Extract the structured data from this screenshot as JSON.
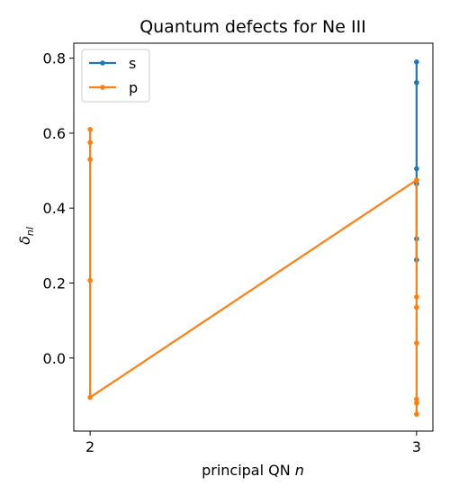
{
  "chart_data": {
    "type": "line",
    "title": "Quantum defects for Ne III",
    "xlabel_text": "principal QN ",
    "xlabel_var": "n",
    "ylabel_sym": "δ",
    "ylabel_sub": "nl",
    "xticks": [
      2,
      3
    ],
    "xtick_labels": [
      "2",
      "3"
    ],
    "yticks": [
      0.0,
      0.2,
      0.4,
      0.6,
      0.8
    ],
    "ytick_labels": [
      "0.0",
      "0.2",
      "0.4",
      "0.6",
      "0.8"
    ],
    "xlim": [
      1.95,
      3.05
    ],
    "ylim": [
      -0.195,
      0.84
    ],
    "grid": false,
    "legend_position": "top-left",
    "series": [
      {
        "name": "s",
        "color": "#1f77b4",
        "points": [
          [
            3,
            0.79
          ],
          [
            3,
            0.735
          ],
          [
            3,
            0.505
          ],
          [
            3,
            0.465
          ],
          [
            3,
            0.318
          ],
          [
            3,
            0.262
          ]
        ]
      },
      {
        "name": "p",
        "color": "#ff7f0e",
        "points": [
          [
            2,
            0.61
          ],
          [
            2,
            0.575
          ],
          [
            2,
            0.53
          ],
          [
            2,
            0.207
          ],
          [
            2,
            -0.105
          ],
          [
            3,
            0.475
          ],
          [
            3,
            0.163
          ],
          [
            3,
            0.135
          ],
          [
            3,
            0.04
          ],
          [
            3,
            -0.11
          ],
          [
            3,
            -0.12
          ],
          [
            3,
            -0.15
          ]
        ]
      }
    ]
  }
}
